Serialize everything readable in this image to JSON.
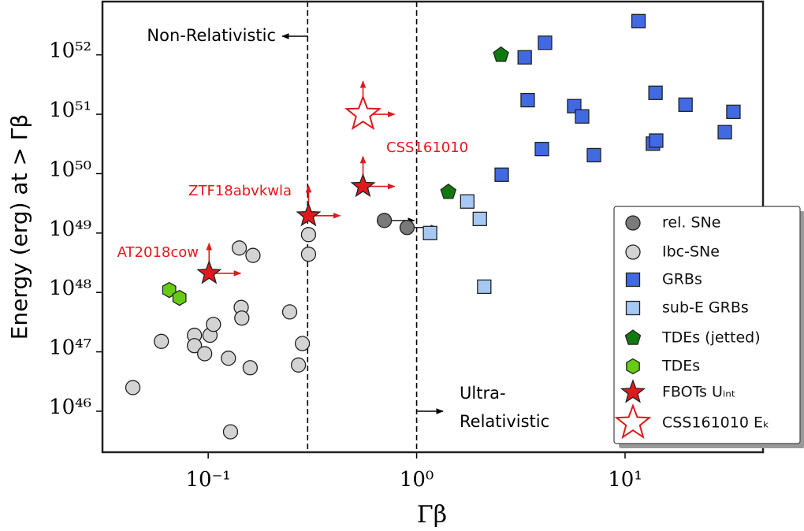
{
  "chart_data": {
    "type": "scatter",
    "xlabel": "Γβ",
    "ylabel": "Energy (erg) at > Γβ",
    "log_x": true,
    "log_y": true,
    "xlim": [
      0.0311,
      45.9
    ],
    "ylim": [
      2.04e+45,
      7.9e+52
    ],
    "xticks": [
      {
        "value": 0.1,
        "label": "10⁻¹"
      },
      {
        "value": 1,
        "label": "10⁰"
      },
      {
        "value": 10,
        "label": "10¹"
      }
    ],
    "yticks": [
      {
        "value": 1e+46,
        "label": "10⁴⁶"
      },
      {
        "value": 1e+47,
        "label": "10⁴⁷"
      },
      {
        "value": 1e+48,
        "label": "10⁴⁸"
      },
      {
        "value": 1e+49,
        "label": "10⁴⁹"
      },
      {
        "value": 1e+50,
        "label": "10⁵⁰"
      },
      {
        "value": 1e+51,
        "label": "10⁵¹"
      },
      {
        "value": 1e+52,
        "label": "10⁵²"
      }
    ],
    "vlines": [
      0.3,
      1
    ],
    "legend": "lower right",
    "annotations": [
      {
        "text": [
          "Non-Relativistic"
        ],
        "color": "#000000"
      },
      {
        "text": [
          "Ultra-",
          "Relativistic"
        ],
        "color": "#000000"
      },
      {
        "text": [
          "AT2018cow"
        ],
        "color": "#e8161b"
      },
      {
        "text": [
          "ZTF18abvkwla"
        ],
        "color": "#e8161b"
      },
      {
        "text": [
          "CSS161010"
        ],
        "color": "#e8161b"
      }
    ],
    "series": [
      {
        "name": "rel. SNe",
        "marker": "circle",
        "color": "#7a7a7a",
        "arrows": "right",
        "x": [
          0.7,
          0.9
        ],
        "values": [
          1.63e+49,
          1.24e+49
        ]
      },
      {
        "name": "Ibc-SNe",
        "marker": "circle",
        "color": "#d3d3d3",
        "x": [
          0.0435,
          0.0596,
          0.0859,
          0.0859,
          0.0962,
          0.102,
          0.106,
          0.125,
          0.141,
          0.144,
          0.145,
          0.164,
          0.159,
          0.246,
          0.283,
          0.303,
          0.303,
          0.271,
          0.128
        ],
        "values": [
          2.5e+46,
          1.5e+47,
          1.9e+47,
          1.27e+47,
          9.3e+46,
          1.9e+47,
          2.9e+47,
          7.8e+46,
          5.6e+48,
          5.6e+47,
          3.7e+47,
          4.2e+48,
          5.4e+46,
          4.7e+47,
          1.38e+47,
          9.4e+48,
          4.4e+48,
          6e+46,
          4.5e+45
        ]
      },
      {
        "name": "GRBs",
        "marker": "square",
        "color": "#4169e1",
        "x": [
          11.6,
          4.13,
          3.3,
          3.41,
          14.0,
          5.7,
          6.22,
          19.5,
          3.99,
          7.09,
          13.6,
          14.1,
          30.1,
          33.1,
          2.56
        ],
        "values": [
          3.7e+52,
          1.6e+52,
          9.1e+51,
          1.73e+51,
          2.3e+51,
          1.37e+51,
          9.2e+50,
          1.45e+51,
          2.6e+50,
          2.05e+50,
          3.2e+50,
          3.6e+50,
          5e+50,
          1.1e+51,
          9.6e+49
        ]
      },
      {
        "name": "sub-E GRBs",
        "marker": "square",
        "color": "#a6c8f2",
        "x": [
          1.16,
          1.75,
          2.01,
          2.11
        ],
        "values": [
          1e+49,
          3.4e+49,
          1.73e+49,
          1.25e+48
        ]
      },
      {
        "name": "TDEs (jetted)",
        "marker": "pentagon",
        "color": "#107a10",
        "x": [
          2.54,
          1.42
        ],
        "values": [
          1e+52,
          4.9e+49
        ]
      },
      {
        "name": "TDEs",
        "marker": "hexagon",
        "color": "#66cc11",
        "x": [
          0.065,
          0.0728
        ],
        "values": [
          1.1e+48,
          8.1e+47
        ]
      },
      {
        "name": "FBOTs Uᵢₙₜ",
        "marker": "star",
        "color": "#e0191c",
        "arrows": "up-right",
        "x": [
          0.101,
          0.303,
          0.553
        ],
        "values": [
          2.1e+48,
          1.96e+49,
          6.1e+49
        ]
      },
      {
        "name": "CSS161010 Eₖ",
        "marker": "star-open",
        "color": "#e0191c",
        "arrows": "up-right",
        "x": [
          0.553
        ],
        "values": [
          1e+51
        ]
      }
    ]
  }
}
